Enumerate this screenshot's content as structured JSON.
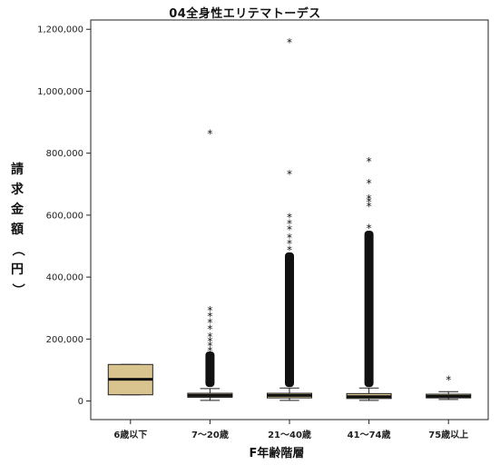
{
  "chart_data": {
    "type": "box",
    "title": "04全身性エリテマトーデス",
    "xlabel": "F年齢階層",
    "ylabel": "請求金額（円）",
    "ylim": [
      -60000,
      1230000
    ],
    "yticks": [
      0,
      200000,
      400000,
      600000,
      800000,
      1000000,
      1200000
    ],
    "ytick_labels": [
      "0",
      "200,000",
      "400,000",
      "600,000",
      "800,000",
      "1,000,000",
      "1,200,000"
    ],
    "grid": false,
    "categories": [
      "6歳以下",
      "7～20歳",
      "21～40歳",
      "41～74歳",
      "75歳以上"
    ],
    "boxes": [
      {
        "category": "6歳以下",
        "whisker_low": 20000,
        "q1": 20000,
        "median": 70000,
        "q3": 118000,
        "whisker_high": 118000,
        "fill": "#d9c48f",
        "outliers": [],
        "outlier_band": null
      },
      {
        "category": "7～20歳",
        "whisker_low": 2000,
        "q1": 12000,
        "median": 18000,
        "q3": 25000,
        "whisker_high": 40000,
        "fill": "#d9c48f",
        "outliers": [
          865000,
          295000,
          275000,
          255000,
          235000,
          210000,
          195000,
          180000,
          165000
        ],
        "outlier_band": [
          45000,
          160000
        ]
      },
      {
        "category": "21～40歳",
        "whisker_low": 2000,
        "q1": 10000,
        "median": 18000,
        "q3": 25000,
        "whisker_high": 42000,
        "fill": "#d9c48f",
        "outliers": [
          1160000,
          735000,
          595000,
          575000,
          555000,
          530000,
          510000,
          490000
        ],
        "outlier_band": [
          45000,
          480000
        ]
      },
      {
        "category": "41～74歳",
        "whisker_low": 2000,
        "q1": 8000,
        "median": 14000,
        "q3": 24000,
        "whisker_high": 42000,
        "fill": "#d9c48f",
        "outliers": [
          775000,
          705000,
          655000,
          645000,
          630000,
          560000
        ],
        "outlier_band": [
          45000,
          550000
        ]
      },
      {
        "category": "75歳以上",
        "whisker_low": 5000,
        "q1": 10000,
        "median": 15000,
        "q3": 22000,
        "whisker_high": 30000,
        "fill": "#d9c48f",
        "outliers": [
          70000
        ],
        "outlier_band": null
      }
    ]
  }
}
